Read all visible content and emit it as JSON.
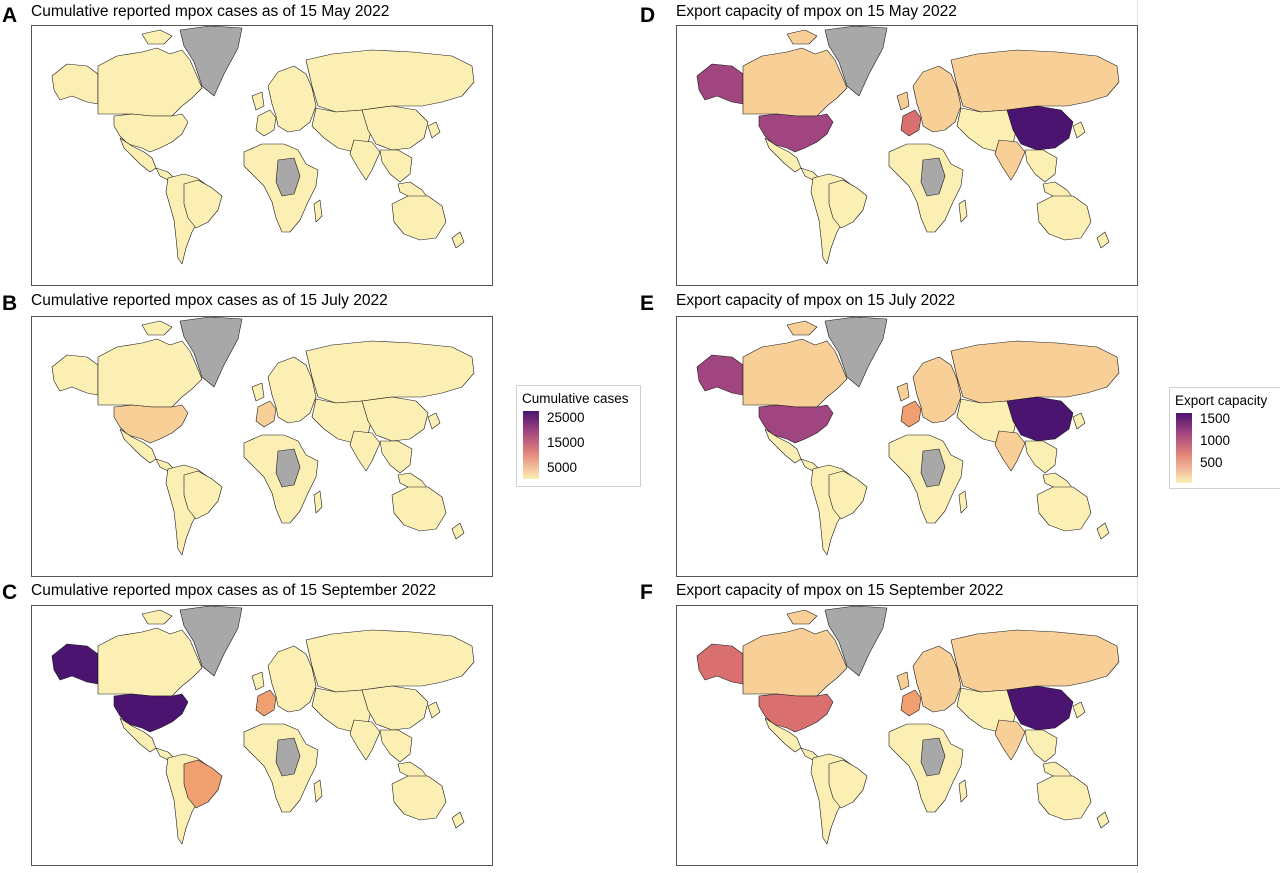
{
  "panels": [
    {
      "letter": "A",
      "title": "Cumulative reported mpox cases as of 15 May 2022",
      "metric": "cases",
      "fills": {
        "greenland": "grey",
        "canada": "low",
        "alaska": "low",
        "usa": "low",
        "mexico": "low",
        "south_america": "low",
        "brazil": "low",
        "europe": "low",
        "west_europe": "low",
        "africa": "low",
        "central_africa": "grey",
        "russia": "low",
        "asia": "low",
        "china": "low",
        "india": "low",
        "australia": "low"
      }
    },
    {
      "letter": "B",
      "title": "Cumulative reported mpox cases as of 15 July 2022",
      "metric": "cases",
      "fills": {
        "greenland": "grey",
        "canada": "low",
        "alaska": "low",
        "usa": "low_mid",
        "mexico": "low",
        "south_america": "low",
        "brazil": "low",
        "europe": "low",
        "west_europe": "low_mid",
        "africa": "low",
        "central_africa": "grey",
        "russia": "low",
        "asia": "low",
        "china": "low",
        "india": "low",
        "australia": "low"
      }
    },
    {
      "letter": "C",
      "title": "Cumulative reported mpox cases as of 15 September 2022",
      "metric": "cases",
      "fills": {
        "greenland": "grey",
        "canada": "low",
        "alaska": "max",
        "usa": "max",
        "mexico": "low",
        "south_america": "low",
        "brazil": "mid",
        "europe": "low",
        "west_europe": "mid",
        "africa": "low",
        "central_africa": "grey",
        "russia": "low",
        "asia": "low",
        "china": "low",
        "india": "low",
        "australia": "low"
      }
    },
    {
      "letter": "D",
      "title": "Export capacity of mpox on 15 May 2022",
      "metric": "export",
      "fills": {
        "greenland": "grey",
        "canada": "low_mid",
        "alaska": "high",
        "usa": "high",
        "mexico": "low",
        "south_america": "low",
        "brazil": "low",
        "europe": "low_mid",
        "west_europe": "mid_high",
        "africa": "low",
        "central_africa": "grey",
        "russia": "low_mid",
        "asia": "low",
        "china": "max",
        "india": "low_mid",
        "australia": "low"
      }
    },
    {
      "letter": "E",
      "title": "Export capacity of mpox on 15 July 2022",
      "metric": "export",
      "fills": {
        "greenland": "grey",
        "canada": "low_mid",
        "alaska": "high",
        "usa": "high",
        "mexico": "low",
        "south_america": "low",
        "brazil": "low",
        "europe": "low_mid",
        "west_europe": "mid",
        "africa": "low",
        "central_africa": "grey",
        "russia": "low_mid",
        "asia": "low",
        "china": "max",
        "india": "low_mid",
        "australia": "low"
      }
    },
    {
      "letter": "F",
      "title": "Export capacity of mpox on 15 September 2022",
      "metric": "export",
      "fills": {
        "greenland": "grey",
        "canada": "low_mid",
        "alaska": "mid_high",
        "usa": "mid_high",
        "mexico": "low",
        "south_america": "low",
        "brazil": "low",
        "europe": "low_mid",
        "west_europe": "mid",
        "africa": "low",
        "central_africa": "grey",
        "russia": "low_mid",
        "asia": "low",
        "china": "max",
        "india": "low_mid",
        "australia": "low"
      }
    }
  ],
  "legends": {
    "cases": {
      "title": "Cumulative cases",
      "ticks": [
        "25000",
        "15000",
        "5000"
      ]
    },
    "export": {
      "title": "Export capacity",
      "ticks": [
        "1500",
        "1000",
        "500"
      ]
    }
  },
  "colors": {
    "grey": "#a8a8a8",
    "low": "#fcefb4",
    "low_mid": "#f8cf97",
    "mid": "#f0a070",
    "mid_high": "#d9706f",
    "high": "#a0457f",
    "max": "#4a1470",
    "ocean": "#ffffff",
    "border": "#1a1a1a"
  }
}
